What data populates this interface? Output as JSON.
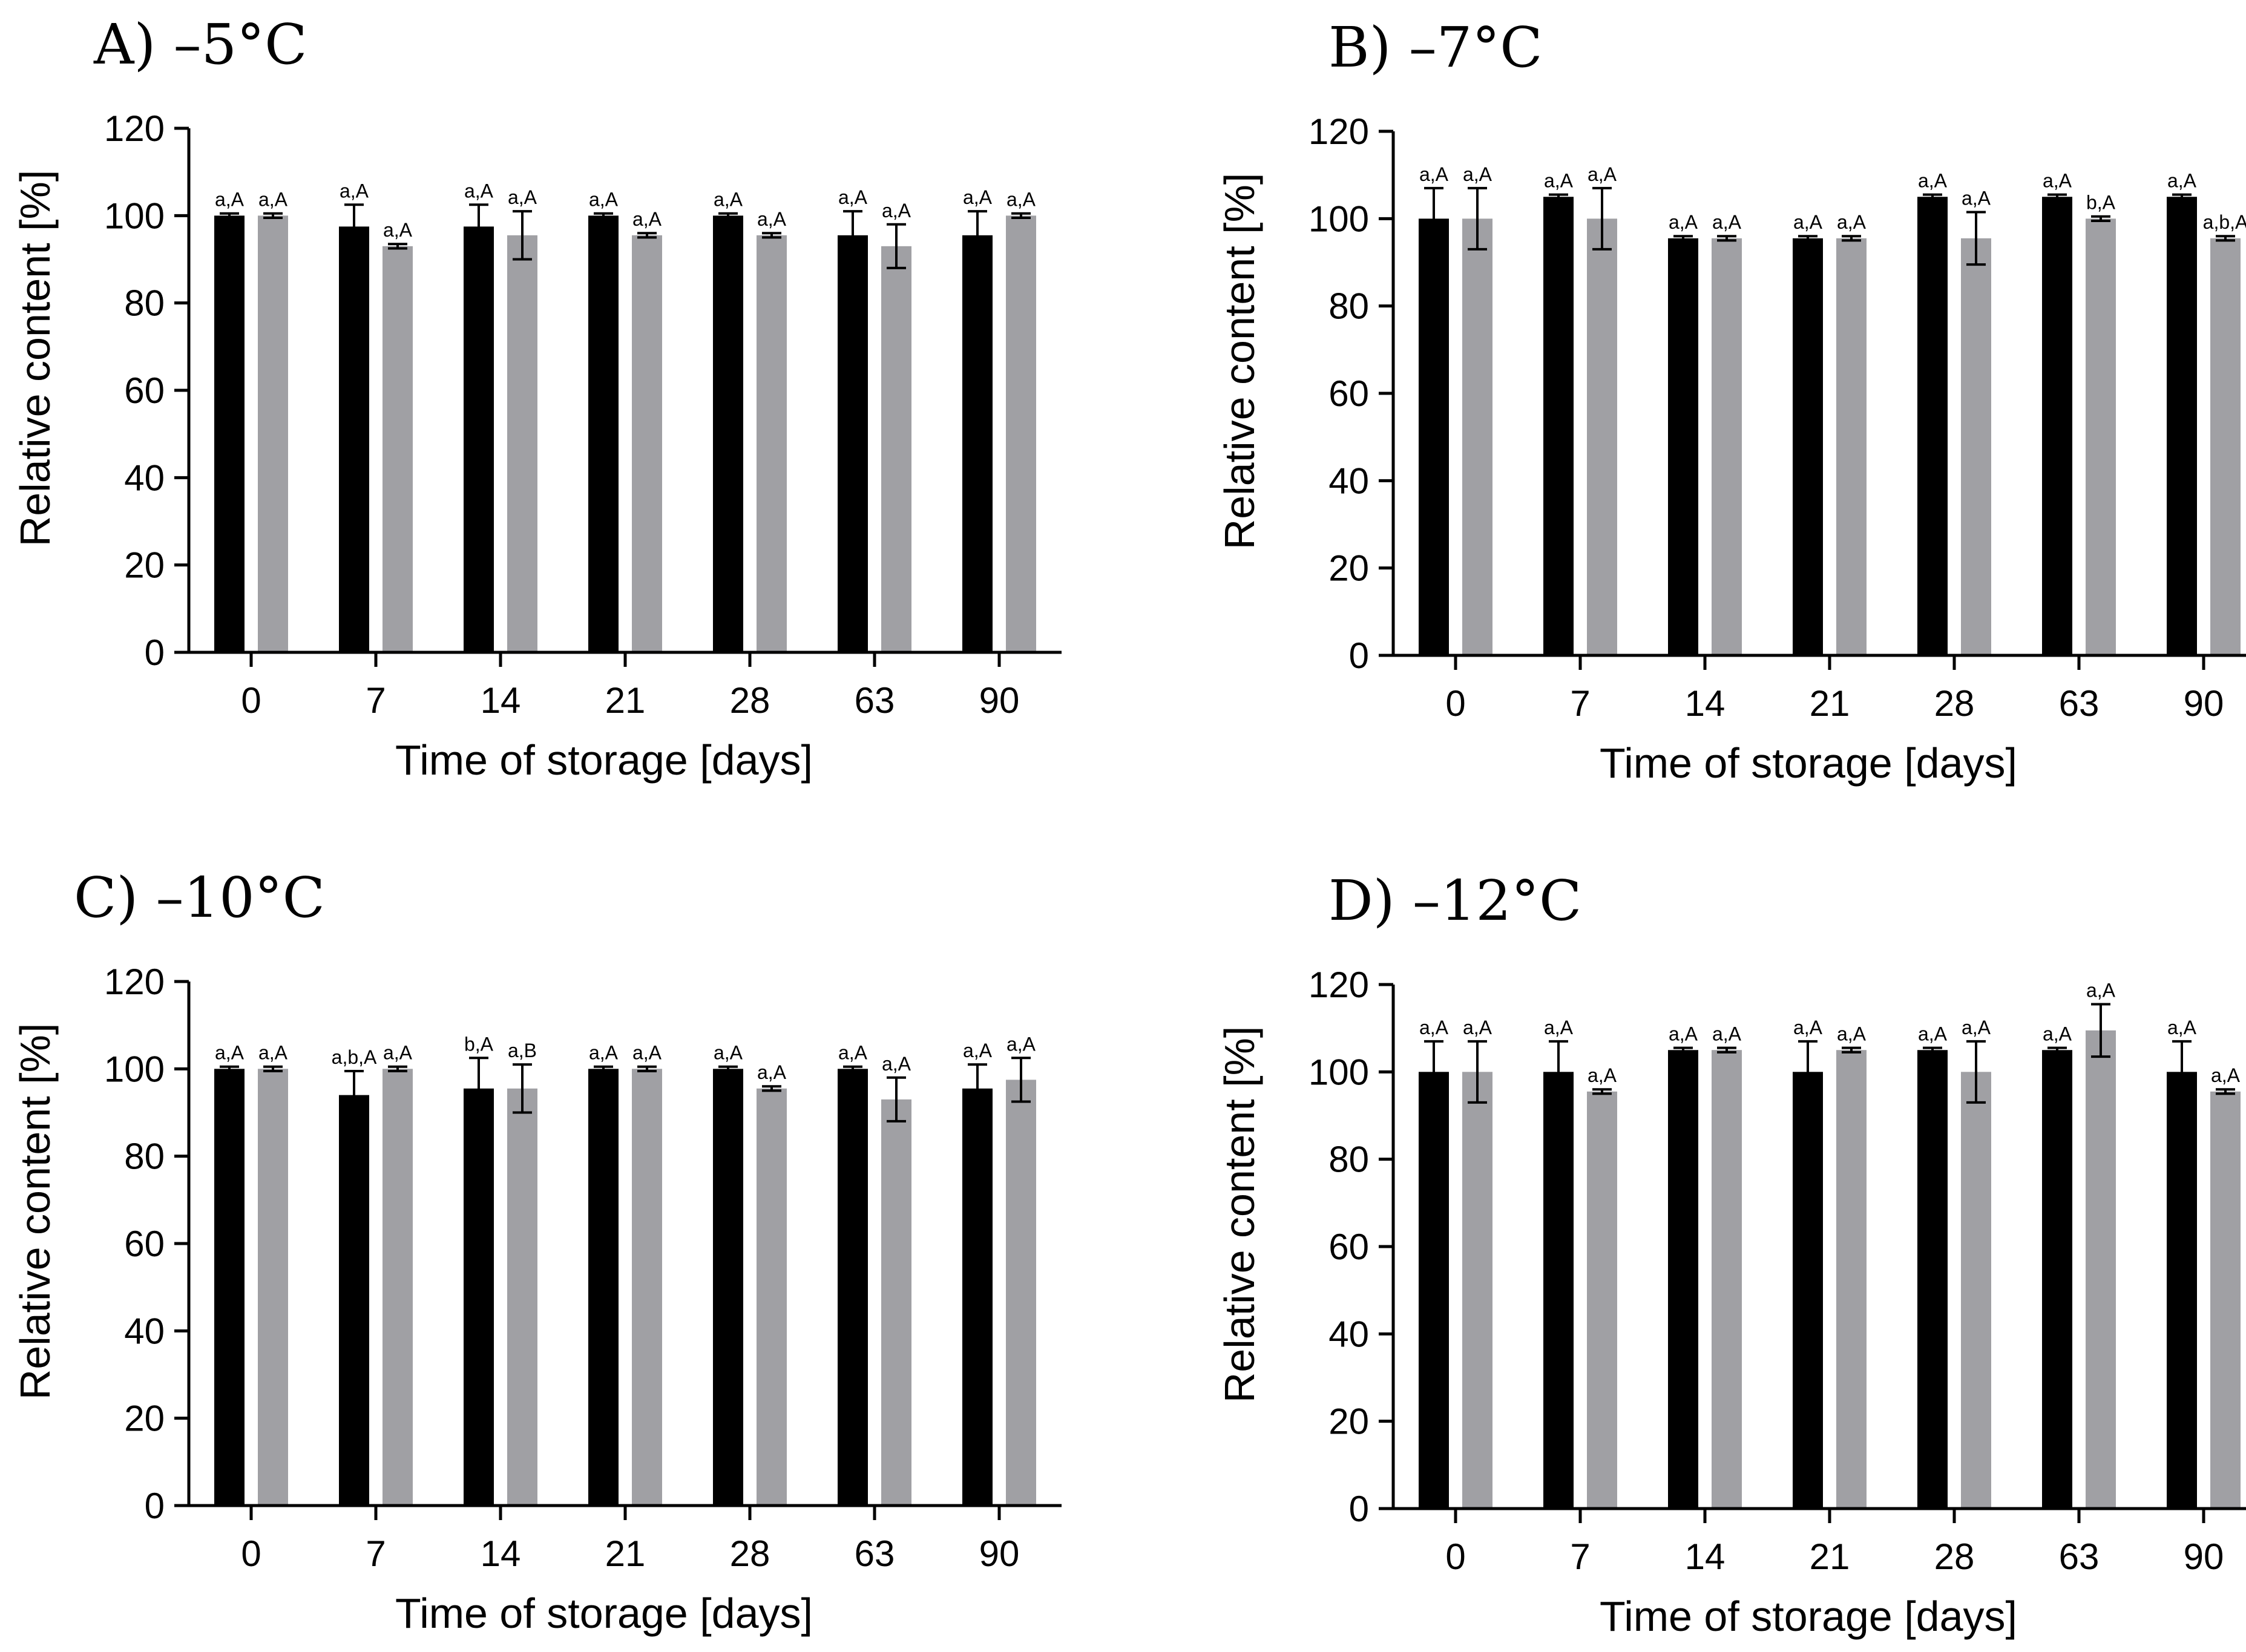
{
  "chart_data": [
    {
      "type": "bar",
      "title": "A) –5°C",
      "xlabel": "Time of storage [days]",
      "ylabel": "Relative content [%]",
      "ylim": [
        0,
        120
      ],
      "yticks": [
        0,
        20,
        40,
        60,
        80,
        100,
        120
      ],
      "categories": [
        "0",
        "7",
        "14",
        "21",
        "28",
        "63",
        "90"
      ],
      "series": [
        {
          "color": "#000000",
          "values": [
            100,
            97.5,
            97.5,
            100,
            100,
            95.5,
            95.5
          ],
          "errors": [
            0.5,
            5,
            5,
            0.5,
            0.5,
            5.5,
            5.5
          ],
          "labels": [
            "a,A",
            "a,A",
            "a,A",
            "a,A",
            "a,A",
            "a,A",
            "a,A"
          ]
        },
        {
          "color": "#a0a0a4",
          "values": [
            100,
            93,
            95.5,
            95.5,
            95.5,
            93,
            100
          ],
          "errors": [
            0.5,
            0.5,
            5.5,
            0.5,
            0.5,
            5,
            0.5
          ],
          "labels": [
            "a,A",
            "a,A",
            "a,A",
            "a,A",
            "a,A",
            "a,A",
            "a,A"
          ]
        }
      ]
    },
    {
      "type": "bar",
      "title": "B) –7°C",
      "xlabel": "Time of storage [days]",
      "ylabel": "Relative content [%]",
      "ylim": [
        0,
        120
      ],
      "yticks": [
        0,
        20,
        40,
        60,
        80,
        100,
        120
      ],
      "categories": [
        "0",
        "7",
        "14",
        "21",
        "28",
        "63",
        "90"
      ],
      "series": [
        {
          "color": "#000000",
          "values": [
            100,
            105,
            95.5,
            95.5,
            105,
            105,
            105
          ],
          "errors": [
            7,
            0.5,
            0.5,
            0.5,
            0.5,
            0.5,
            0.5
          ],
          "labels": [
            "a,A",
            "a,A",
            "a,A",
            "a,A",
            "a,A",
            "a,A",
            "a,A"
          ]
        },
        {
          "color": "#a0a0a4",
          "values": [
            100,
            100,
            95.5,
            95.5,
            95.5,
            100,
            95.5
          ],
          "errors": [
            7,
            7,
            0.5,
            0.5,
            6,
            0.5,
            0.5
          ],
          "labels": [
            "a,A",
            "a,A",
            "a,A",
            "a,A",
            "a,A",
            "b,A",
            "a,b,A"
          ]
        }
      ]
    },
    {
      "type": "bar",
      "title": "C) –10°C",
      "xlabel": "Time of storage [days]",
      "ylabel": "Relative content [%]",
      "ylim": [
        0,
        120
      ],
      "yticks": [
        0,
        20,
        40,
        60,
        80,
        100,
        120
      ],
      "categories": [
        "0",
        "7",
        "14",
        "21",
        "28",
        "63",
        "90"
      ],
      "series": [
        {
          "color": "#000000",
          "values": [
            100,
            94,
            95.5,
            100,
            100,
            100,
            95.5
          ],
          "errors": [
            0.5,
            5.5,
            7,
            0.5,
            0.5,
            0.5,
            5.5
          ],
          "labels": [
            "a,A",
            "a,b,A",
            "b,A",
            "a,A",
            "a,A",
            "a,A",
            "a,A"
          ]
        },
        {
          "color": "#a0a0a4",
          "values": [
            100,
            100,
            95.5,
            100,
            95.5,
            93,
            97.5
          ],
          "errors": [
            0.5,
            0.5,
            5.5,
            0.5,
            0.5,
            5,
            5
          ],
          "labels": [
            "a,A",
            "a,A",
            "a,B",
            "a,A",
            "a,A",
            "a,A",
            "a,A"
          ]
        }
      ]
    },
    {
      "type": "bar",
      "title": "D) –12°C",
      "xlabel": "Time of storage [days]",
      "ylabel": "Relative content [%]",
      "ylim": [
        0,
        120
      ],
      "yticks": [
        0,
        20,
        40,
        60,
        80,
        100,
        120
      ],
      "categories": [
        "0",
        "7",
        "14",
        "21",
        "28",
        "63",
        "90"
      ],
      "series": [
        {
          "color": "#000000",
          "values": [
            100,
            100,
            105,
            100,
            105,
            105,
            100
          ],
          "errors": [
            7,
            7,
            0.5,
            7,
            0.5,
            0.5,
            7
          ],
          "labels": [
            "a,A",
            "a,A",
            "a,A",
            "a,A",
            "a,A",
            "a,A",
            "a,A"
          ]
        },
        {
          "color": "#a0a0a4",
          "values": [
            100,
            95.5,
            105,
            105,
            100,
            109.5,
            95.5
          ],
          "errors": [
            7,
            0.5,
            0.5,
            0.5,
            7,
            6,
            0.5
          ],
          "labels": [
            "a,A",
            "a,A",
            "a,A",
            "a,A",
            "a,A",
            "a,A",
            "a,A"
          ]
        }
      ]
    }
  ]
}
